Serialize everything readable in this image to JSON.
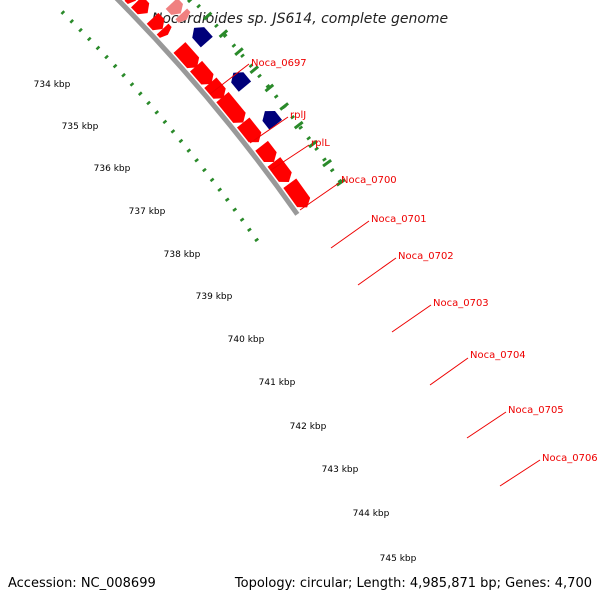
{
  "title": "Nocardioides sp. JS614, complete genome",
  "footer": {
    "accession": "Accession: NC_008699",
    "summary": "Topology: circular; Length: 4,985,871 bp; Genes: 4,700"
  },
  "colors": {
    "backbone": "#999999",
    "tick": "#2a8a2a",
    "forward_gene": "#ff0000",
    "forward_gene_light": "#f08080",
    "reverse_gene": "#00007a",
    "other_gene": "#ff8c00",
    "trna": "#adff2f",
    "top_gene": "#0000ff",
    "label": "#ee0000"
  },
  "ticks": [
    "734 kbp",
    "735 kbp",
    "736 kbp",
    "737 kbp",
    "738 kbp",
    "739 kbp",
    "740 kbp",
    "741 kbp",
    "742 kbp",
    "743 kbp",
    "744 kbp",
    "745 kbp"
  ],
  "gene_labels": [
    "Noca_0697",
    "rplJ",
    "rplL",
    "Noca_0700",
    "Noca_0701",
    "Noca_0702",
    "Noca_0703",
    "Noca_0704",
    "Noca_0705",
    "Noca_0706"
  ]
}
